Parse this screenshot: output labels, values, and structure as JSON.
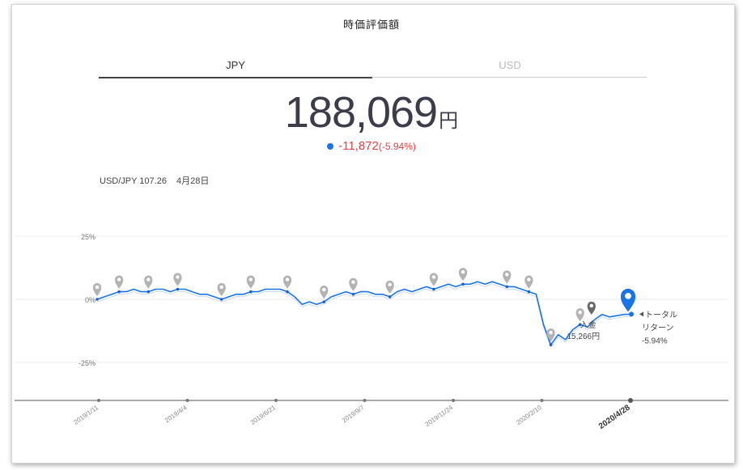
{
  "header": {
    "title": "時価評価額"
  },
  "tabs": [
    {
      "label": "JPY",
      "active": true
    },
    {
      "label": "USD",
      "active": false
    }
  ],
  "valuation": {
    "amount": "188,069",
    "unit": "円"
  },
  "change": {
    "amount": "-11,872",
    "percent": "(-5.94%)",
    "color": "#d44444"
  },
  "fx": {
    "pair": "USD/JPY 107.26",
    "date": "4月28日"
  },
  "chart_data": {
    "type": "line",
    "yticks": [
      "25%",
      "0%",
      "-25%"
    ],
    "ylim": [
      -40,
      30
    ],
    "xticks": [
      "2019/1/11",
      "2019/4/4",
      "2019/6/21",
      "2019/9/7",
      "2019/11/24",
      "2020/2/10",
      "2020/4/28"
    ],
    "series": [
      {
        "name": "total-return",
        "color": "#1a73e8",
        "values": [
          0,
          1,
          2,
          3,
          3,
          4,
          3,
          3,
          4,
          4,
          3,
          4,
          4,
          3,
          2,
          2,
          1,
          0,
          1,
          2,
          2,
          3,
          3,
          4,
          4,
          4,
          3,
          1,
          -2,
          -1,
          -2,
          -1,
          1,
          2,
          3,
          2,
          3,
          3,
          2,
          2,
          1,
          3,
          4,
          3,
          4,
          5,
          4,
          5,
          6,
          5,
          6,
          6,
          7,
          6,
          7,
          6,
          5,
          5,
          4,
          3,
          2,
          -10,
          -18,
          -14,
          -16,
          -12,
          -10,
          -11,
          -8,
          -6,
          -7,
          -6.5,
          -6,
          -5.9
        ]
      }
    ],
    "annotations": {
      "end_label": [
        "トータル",
        "リターン",
        "-5.94%"
      ],
      "deposit_label": [
        "入金",
        "15,266円"
      ]
    }
  }
}
